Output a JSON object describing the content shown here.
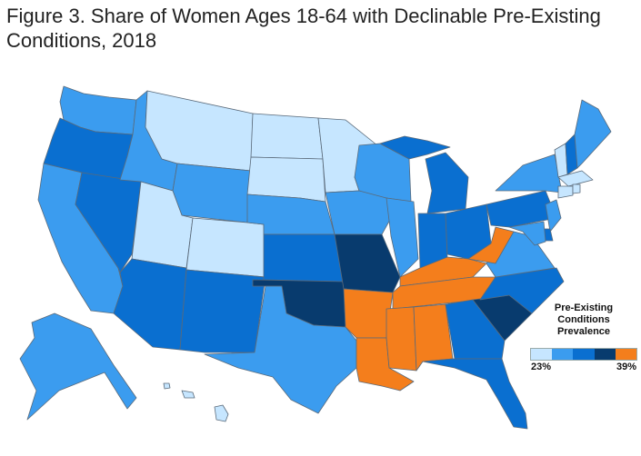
{
  "title": "Figure 3. Share of Women Ages 18-64 with Declinable Pre-Existing Conditions, 2018",
  "legend": {
    "title_lines": [
      "Pre-Existing",
      "Conditions",
      "Prevalence"
    ],
    "min_label": "23%",
    "max_label": "39%",
    "bins": [
      "#c6e6ff",
      "#3b9cef",
      "#0a6fd0",
      "#083b6e",
      "#f47e1c"
    ]
  },
  "colors": {
    "light": "#c6e6ff",
    "mid": "#3b9cef",
    "dark": "#0a6fd0",
    "navy": "#083b6e",
    "orange": "#f47e1c",
    "border": "#5a6a7a"
  },
  "states": {
    "WA": "mid",
    "OR": "dark",
    "CA": "mid",
    "NV": "dark",
    "ID": "mid",
    "MT": "light",
    "WY": "mid",
    "UT": "light",
    "CO": "light",
    "AZ": "dark",
    "NM": "dark",
    "ND": "light",
    "SD": "light",
    "NE": "mid",
    "KS": "dark",
    "OK": "navy",
    "TX": "mid",
    "MN": "light",
    "IA": "mid",
    "MO": "navy",
    "AR": "orange",
    "LA": "orange",
    "WI": "mid",
    "IL": "mid",
    "MI": "dark",
    "IN": "dark",
    "OH": "dark",
    "KY": "orange",
    "TN": "orange",
    "MS": "orange",
    "AL": "orange",
    "GA": "dark",
    "FL": "dark",
    "SC": "navy",
    "NC": "dark",
    "VA": "mid",
    "WV": "orange",
    "PA": "dark",
    "NY": "mid",
    "VT": "light",
    "NH": "dark",
    "ME": "mid",
    "MA": "light",
    "CT": "light",
    "RI": "light",
    "NJ": "mid",
    "DE": "dark",
    "MD": "mid",
    "AK": "mid",
    "HI": "light"
  }
}
